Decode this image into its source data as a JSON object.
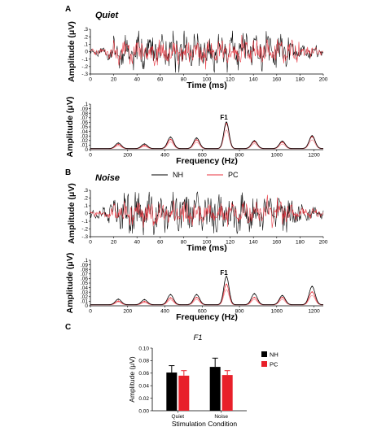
{
  "colors": {
    "nh": "#000000",
    "pc": "#e8323c",
    "pc_light": "#f08c93"
  },
  "panel_letters": {
    "a": "A",
    "b": "B",
    "c": "C"
  },
  "legend": {
    "nh": "NH",
    "pc": "PC"
  },
  "chart_data": [
    {
      "id": "a_time",
      "type": "line",
      "condition_label": "Quiet",
      "xlabel": "Time (ms)",
      "ylabel": "Amplitude (μV)",
      "xlim": [
        0,
        200
      ],
      "ylim": [
        -0.3,
        0.3
      ],
      "xticks": [
        0,
        20,
        40,
        60,
        80,
        100,
        120,
        140,
        160,
        180,
        200
      ],
      "yticks": [
        -0.3,
        -0.2,
        -0.1,
        0,
        0.1,
        0.2,
        0.3
      ],
      "description_series": [
        {
          "name": "NH",
          "waveform": "ffr",
          "seed": 11,
          "amp": 0.2
        },
        {
          "name": "PC",
          "waveform": "ffr",
          "seed": 23,
          "amp": 0.14
        }
      ]
    },
    {
      "id": "a_freq",
      "type": "line",
      "xlabel": "Frequency (Hz)",
      "ylabel": "Amplitude (μV)",
      "xlim": [
        0,
        1250
      ],
      "ylim": [
        0,
        0.1
      ],
      "xticks": [
        0,
        200,
        400,
        600,
        800,
        1000,
        1200
      ],
      "yticks": [
        0,
        0.01,
        0.02,
        0.03,
        0.04,
        0.05,
        0.06,
        0.07,
        0.08,
        0.09,
        0.1
      ],
      "annotation": {
        "text": "F1",
        "x": 730,
        "y": 0.066
      },
      "peaks": [
        {
          "f": 150,
          "nh": 0.012,
          "pc": 0.009
        },
        {
          "f": 290,
          "nh": 0.01,
          "pc": 0.007
        },
        {
          "f": 430,
          "nh": 0.025,
          "pc": 0.02
        },
        {
          "f": 570,
          "nh": 0.023,
          "pc": 0.019
        },
        {
          "f": 730,
          "nh": 0.058,
          "pc": 0.055
        },
        {
          "f": 880,
          "nh": 0.017,
          "pc": 0.015
        },
        {
          "f": 1030,
          "nh": 0.016,
          "pc": 0.014
        },
        {
          "f": 1190,
          "nh": 0.028,
          "pc": 0.026
        }
      ]
    },
    {
      "id": "b_time",
      "type": "line",
      "condition_label": "Noise",
      "xlabel": "Time (ms)",
      "ylabel": "Amplitude (μV)",
      "xlim": [
        0,
        200
      ],
      "ylim": [
        -0.3,
        0.3
      ],
      "xticks": [
        0,
        20,
        40,
        60,
        80,
        100,
        120,
        140,
        160,
        180,
        200
      ],
      "yticks": [
        -0.3,
        -0.2,
        -0.1,
        0,
        0.1,
        0.2,
        0.3
      ],
      "description_series": [
        {
          "name": "NH",
          "waveform": "ffr",
          "seed": 37,
          "amp": 0.22
        },
        {
          "name": "PC",
          "waveform": "ffr",
          "seed": 51,
          "amp": 0.12
        }
      ]
    },
    {
      "id": "b_freq",
      "type": "line",
      "xlabel": "Frequency (Hz)",
      "ylabel": "Amplitude (μV)",
      "xlim": [
        0,
        1250
      ],
      "ylim": [
        0,
        0.1
      ],
      "xticks": [
        0,
        200,
        400,
        600,
        800,
        1000,
        1200
      ],
      "yticks": [
        0,
        0.01,
        0.02,
        0.03,
        0.04,
        0.05,
        0.06,
        0.07,
        0.08,
        0.09,
        0.1
      ],
      "annotation": {
        "text": "F1",
        "x": 730,
        "y": 0.068
      },
      "peaks": [
        {
          "f": 150,
          "nh": 0.012,
          "pc": 0.008
        },
        {
          "f": 290,
          "nh": 0.011,
          "pc": 0.007
        },
        {
          "f": 430,
          "nh": 0.022,
          "pc": 0.015
        },
        {
          "f": 570,
          "nh": 0.022,
          "pc": 0.016
        },
        {
          "f": 730,
          "nh": 0.062,
          "pc": 0.045
        },
        {
          "f": 880,
          "nh": 0.024,
          "pc": 0.016
        },
        {
          "f": 1030,
          "nh": 0.02,
          "pc": 0.016
        },
        {
          "f": 1190,
          "nh": 0.04,
          "pc": 0.028
        }
      ]
    },
    {
      "id": "c_bar",
      "type": "bar",
      "title": "F1",
      "xlabel": "Stimulation Condition",
      "ylabel": "Amplitude (μV)",
      "categories": [
        "Quiet",
        "Noise"
      ],
      "ylim": [
        0,
        0.1
      ],
      "yticks": [
        0,
        0.02,
        0.04,
        0.06,
        0.08,
        0.1
      ],
      "yticklabels": [
        "0.00",
        "0.02",
        "0.04",
        "0.06",
        "0.08",
        "0.10"
      ],
      "series": [
        {
          "name": "NH",
          "values": [
            0.061,
            0.07
          ],
          "errors": [
            0.011,
            0.014
          ]
        },
        {
          "name": "PC",
          "values": [
            0.056,
            0.057
          ],
          "errors": [
            0.008,
            0.007
          ]
        }
      ]
    }
  ]
}
